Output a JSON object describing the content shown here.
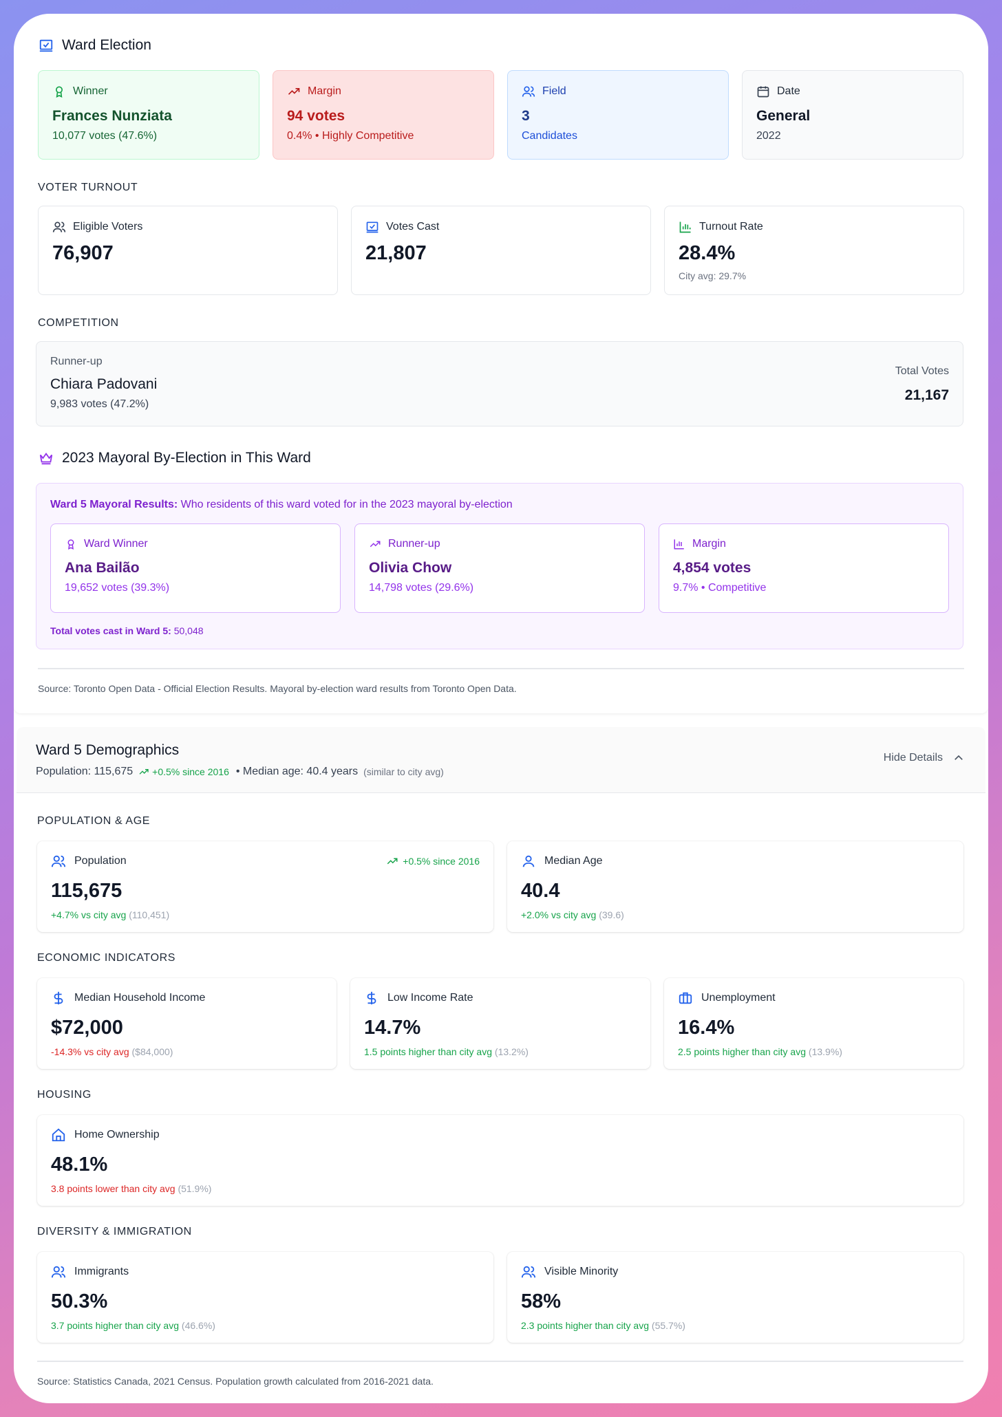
{
  "election": {
    "title": "Ward Election",
    "winner": {
      "label": "Winner",
      "name": "Frances Nunziata",
      "detail": "10,077 votes (47.6%)"
    },
    "margin": {
      "label": "Margin",
      "value": "94 votes",
      "detail": "0.4% • Highly Competitive"
    },
    "field": {
      "label": "Field",
      "value": "3",
      "detail": "Candidates"
    },
    "date": {
      "label": "Date",
      "value": "General",
      "detail": "2022"
    },
    "turnout": {
      "heading": "VOTER TURNOUT",
      "eligible": {
        "label": "Eligible Voters",
        "value": "76,907"
      },
      "cast": {
        "label": "Votes Cast",
        "value": "21,807"
      },
      "rate": {
        "label": "Turnout Rate",
        "value": "28.4%",
        "note": "City avg: 29.7%"
      }
    },
    "competition": {
      "heading": "COMPETITION",
      "runner_label": "Runner-up",
      "runner_name": "Chiara Padovani",
      "runner_votes": "9,983 votes (47.2%)",
      "total_label": "Total Votes",
      "total_value": "21,167"
    },
    "mayoral": {
      "title": "2023 Mayoral By-Election in This Ward",
      "intro_bold": "Ward 5 Mayoral Results:",
      "intro_text": " Who residents of this ward voted for in the 2023 mayoral by-election",
      "winner": {
        "label": "Ward Winner",
        "name": "Ana Bailão",
        "detail": "19,652 votes (39.3%)"
      },
      "runner": {
        "label": "Runner-up",
        "name": "Olivia Chow",
        "detail": "14,798 votes (29.6%)"
      },
      "margin": {
        "label": "Margin",
        "name": "4,854 votes",
        "detail": "9.7% • Competitive"
      },
      "total_bold": "Total votes cast in Ward 5:",
      "total_value": " 50,048"
    },
    "source": "Source: Toronto Open Data - Official Election Results. Mayoral by-election ward results from Toronto Open Data."
  },
  "demographics": {
    "title": "Ward 5 Demographics",
    "pop_summary": "Population: 115,675",
    "pop_growth": "+0.5% since 2016",
    "age_summary": "• Median age: 40.4 years",
    "age_note": "(similar to city avg)",
    "toggle_label": "Hide Details",
    "population_age": {
      "heading": "POPULATION & AGE",
      "population": {
        "label": "Population",
        "trend": "+0.5% since 2016",
        "value": "115,675",
        "diff": "+4.7% vs city avg",
        "ref": "(110,451)"
      },
      "median_age": {
        "label": "Median Age",
        "value": "40.4",
        "diff": "+2.0% vs city avg",
        "ref": "(39.6)"
      }
    },
    "economic": {
      "heading": "ECONOMIC INDICATORS",
      "income": {
        "label": "Median Household Income",
        "value": "$72,000",
        "diff": "-14.3% vs city avg",
        "ref": "($84,000)"
      },
      "low_income": {
        "label": "Low Income Rate",
        "value": "14.7%",
        "diff": "1.5 points higher than city avg",
        "ref": "(13.2%)"
      },
      "unemployment": {
        "label": "Unemployment",
        "value": "16.4%",
        "diff": "2.5 points higher than city avg",
        "ref": "(13.9%)"
      }
    },
    "housing": {
      "heading": "HOUSING",
      "ownership": {
        "label": "Home Ownership",
        "value": "48.1%",
        "diff": "3.8 points lower than city avg",
        "ref": "(51.9%)"
      }
    },
    "diversity": {
      "heading": "DIVERSITY & IMMIGRATION",
      "immigrants": {
        "label": "Immigrants",
        "value": "50.3%",
        "diff": "3.7 points higher than city avg",
        "ref": "(46.6%)"
      },
      "minority": {
        "label": "Visible Minority",
        "value": "58%",
        "diff": "2.3 points higher than city avg",
        "ref": "(55.7%)"
      }
    },
    "source": "Source: Statistics Canada, 2021 Census. Population growth calculated from 2016-2021 data."
  },
  "colors": {
    "winner": "#166534",
    "margin": "#b91c1c",
    "field": "#1e40af",
    "mayoral": "#7e22ce",
    "positive": "#16a34a",
    "negative": "#dc2626"
  }
}
